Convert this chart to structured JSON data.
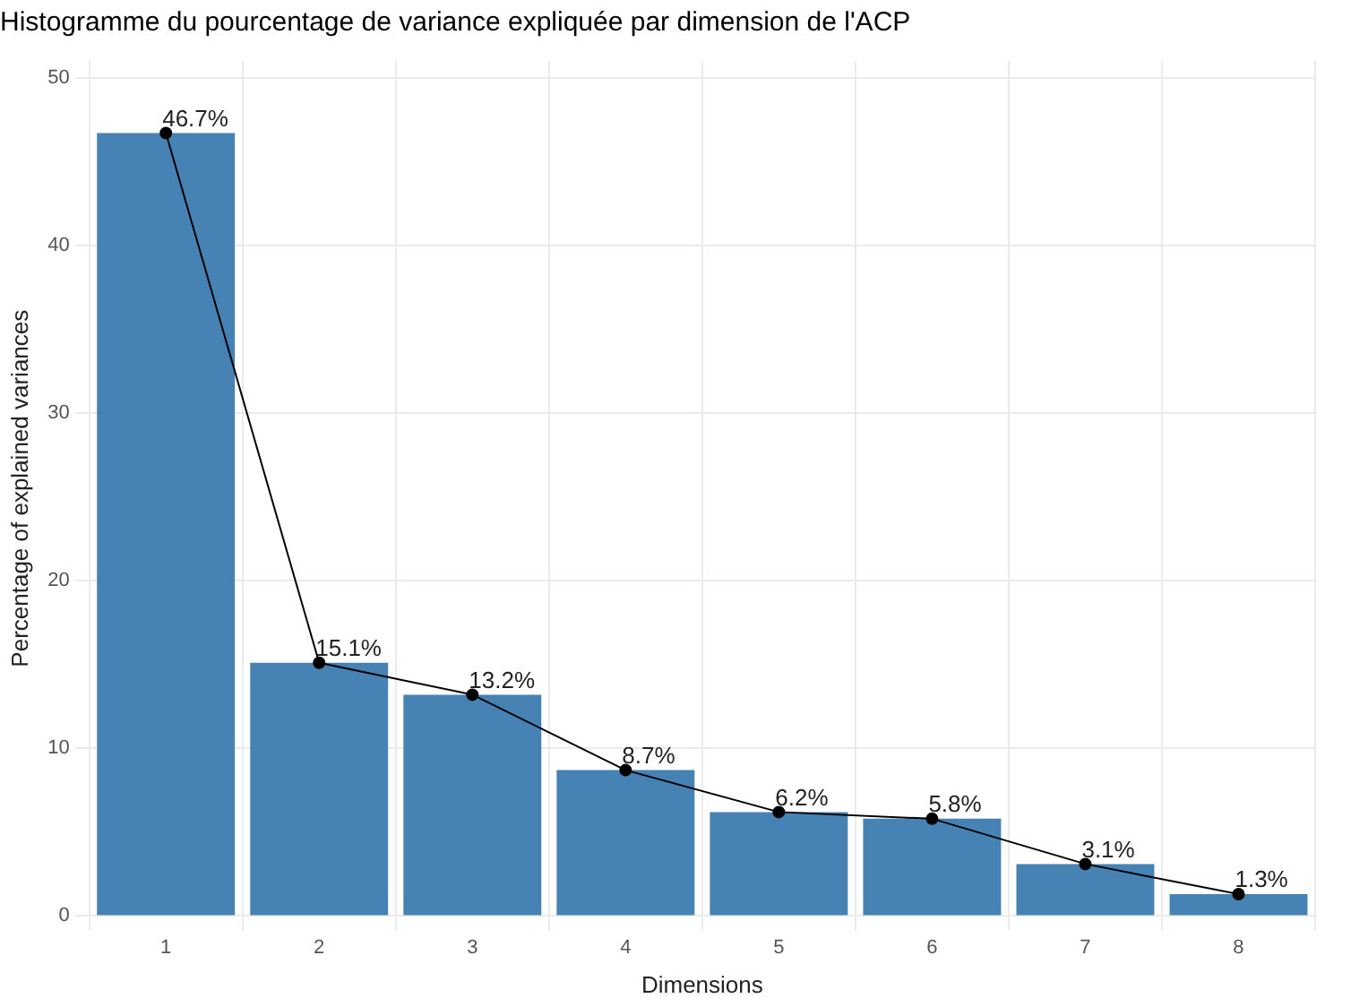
{
  "chart_data": {
    "type": "bar",
    "title": "Histogramme du pourcentage de variance expliquée par dimension de l'ACP",
    "xlabel": "Dimensions",
    "ylabel": "Percentage of explained variances",
    "categories": [
      "1",
      "2",
      "3",
      "4",
      "5",
      "6",
      "7",
      "8"
    ],
    "series": [
      {
        "color": "#4682b4",
        "values": [
          46.7,
          15.1,
          13.2,
          8.7,
          6.2,
          5.8,
          3.1,
          1.3
        ]
      },
      {
        "type": "line",
        "color": "#000000",
        "values": [
          46.7,
          15.1,
          13.2,
          8.7,
          6.2,
          5.8,
          3.1,
          1.3
        ],
        "value_labels": [
          "46.7%",
          "15.1%",
          "13.2%",
          "8.7%",
          "6.2%",
          "5.8%",
          "3.1%",
          "1.3%"
        ]
      }
    ],
    "ylim": [
      0,
      51
    ],
    "yticks": [
      0,
      10,
      20,
      30,
      40,
      50
    ],
    "grid": true,
    "marker": "circle",
    "line_style": "solid"
  }
}
